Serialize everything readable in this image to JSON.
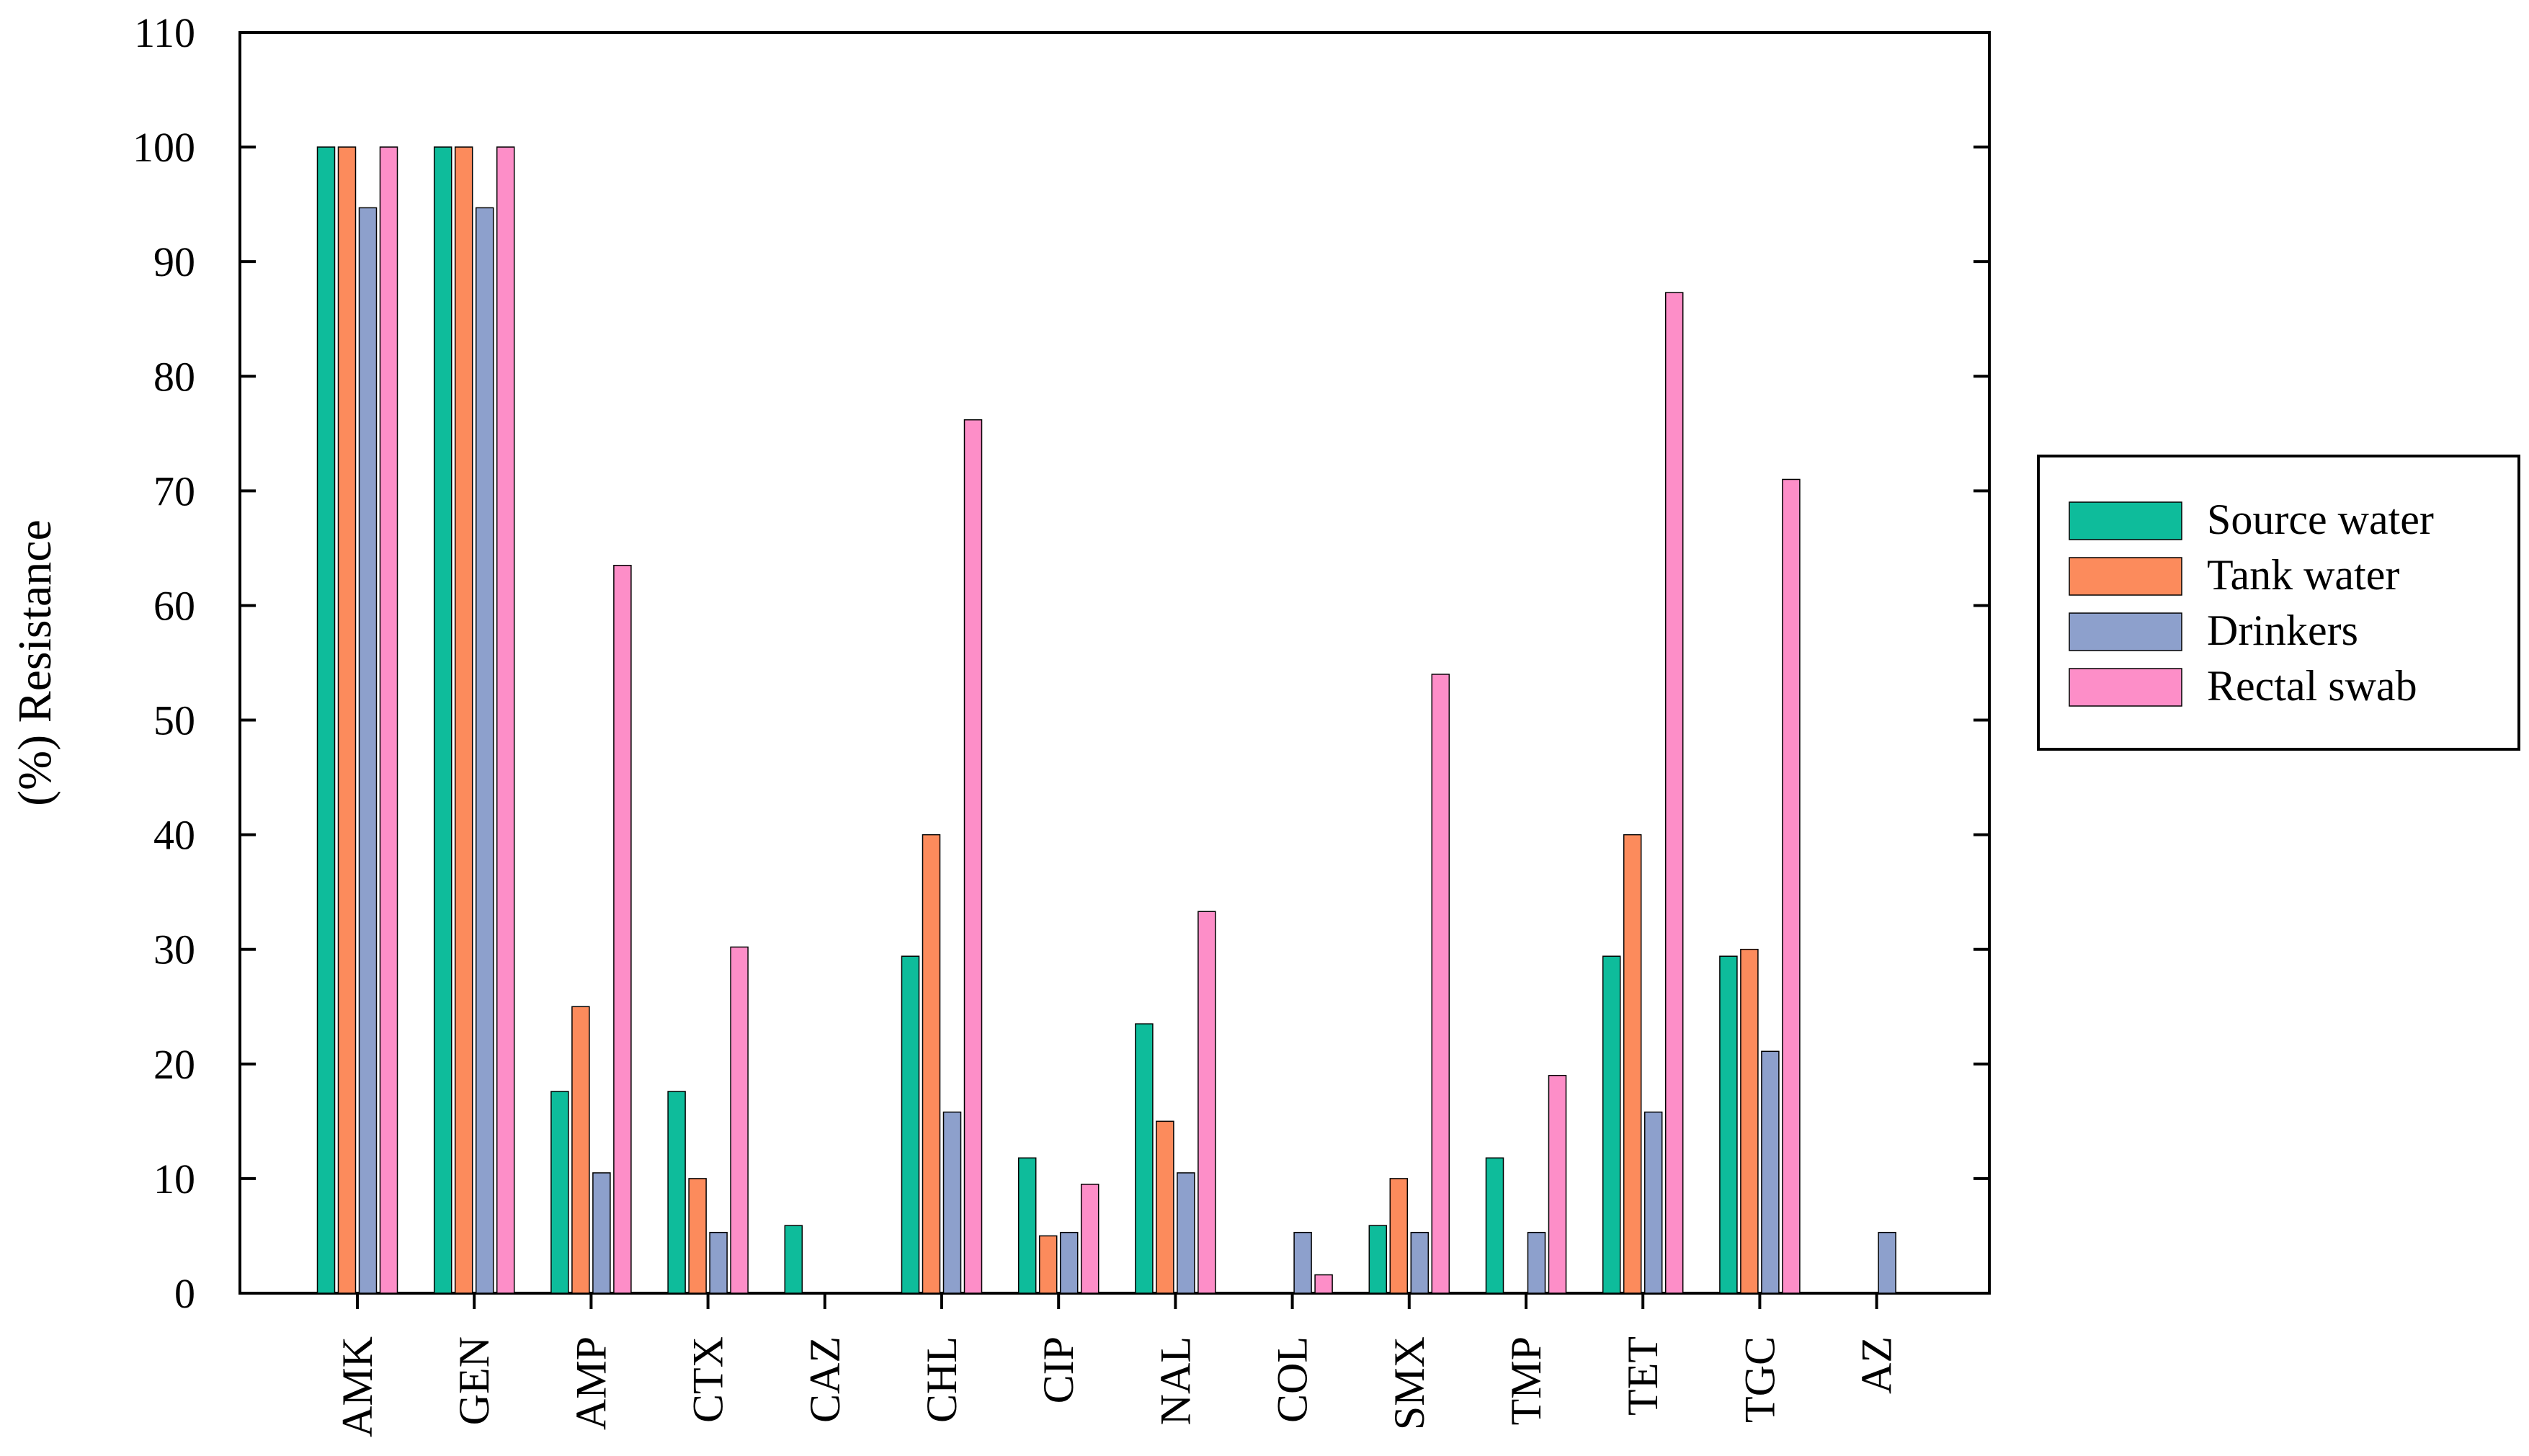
{
  "chart_data": {
    "type": "bar",
    "title": "",
    "xlabel": "",
    "ylabel": "(%) Resistance",
    "ylim": [
      0,
      110
    ],
    "yticks": [
      0,
      10,
      20,
      30,
      40,
      50,
      60,
      70,
      80,
      90,
      100,
      110
    ],
    "grid": false,
    "legend_position": "right",
    "categories": [
      "AMK",
      "GEN",
      "AMP",
      "CTX",
      "CAZ",
      "CHL",
      "CIP",
      "NAL",
      "COL",
      "SMX",
      "TMP",
      "TET",
      "TGC",
      "AZ"
    ],
    "series": [
      {
        "name": "Source water",
        "color": "#0ebc9b",
        "values": [
          100,
          100,
          17.6,
          17.6,
          5.9,
          29.4,
          11.8,
          23.5,
          0,
          5.9,
          11.8,
          29.4,
          29.4,
          0
        ]
      },
      {
        "name": "Tank water",
        "color": "#fc8b5c",
        "values": [
          100,
          100,
          25,
          10,
          0,
          40,
          5,
          15,
          0,
          10,
          0,
          40,
          30,
          0
        ]
      },
      {
        "name": "Drinkers",
        "color": "#8da0cc",
        "values": [
          94.7,
          94.7,
          10.5,
          5.3,
          0,
          15.8,
          5.3,
          10.5,
          5.3,
          5.3,
          5.3,
          15.8,
          21.1,
          5.3
        ]
      },
      {
        "name": "Rectal swab",
        "color": "#fd8ec8",
        "values": [
          100,
          100,
          63.5,
          30.2,
          0,
          76.2,
          9.5,
          33.3,
          1.6,
          54,
          19,
          87.3,
          71,
          0
        ]
      }
    ]
  }
}
